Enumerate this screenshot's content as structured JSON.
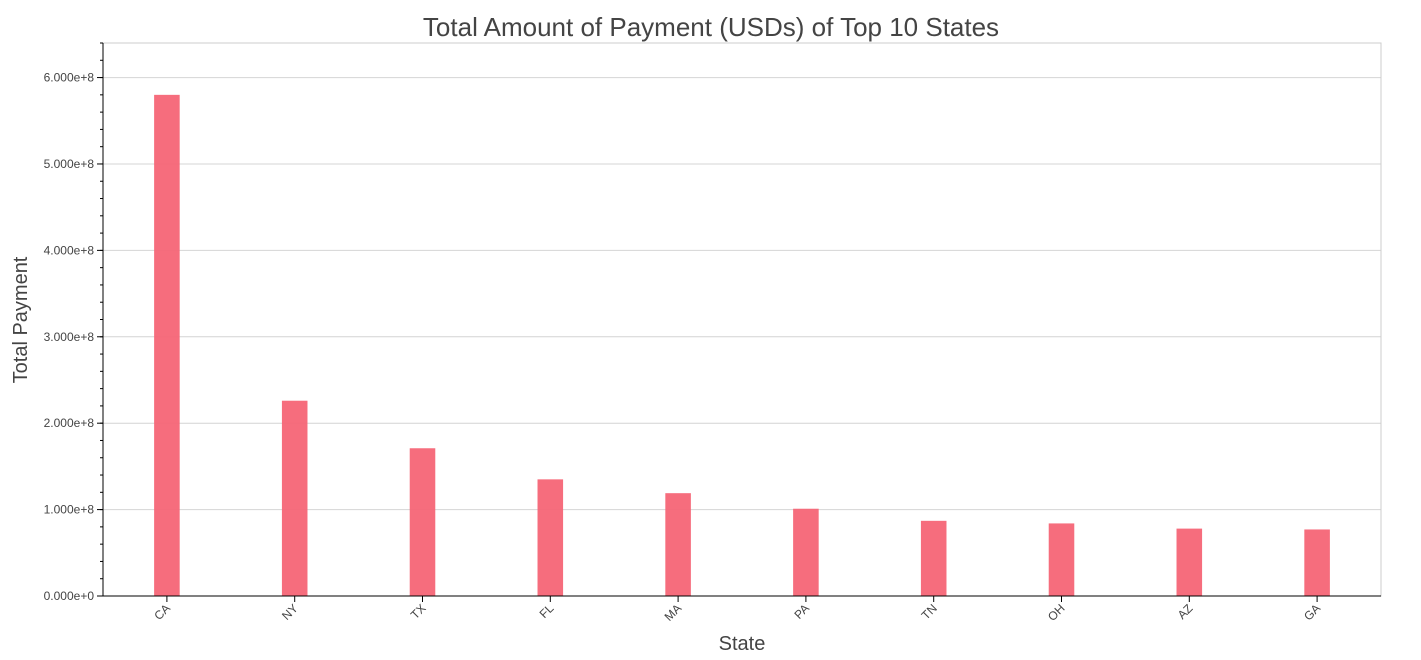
{
  "chart_data": {
    "type": "bar",
    "title": "Total Amount of Payment (USDs) of Top 10 States",
    "xlabel": "State",
    "ylabel": "Total Payment",
    "categories": [
      "CA",
      "NY",
      "TX",
      "FL",
      "MA",
      "PA",
      "TN",
      "OH",
      "AZ",
      "GA"
    ],
    "values": [
      580000000,
      226000000,
      171000000,
      135000000,
      119000000,
      101000000,
      87000000,
      84000000,
      78000000,
      77000000
    ],
    "ylim": [
      0,
      640000000
    ],
    "yticks": [
      0,
      100000000,
      200000000,
      300000000,
      400000000,
      500000000,
      600000000
    ],
    "ytick_labels": [
      "0.000e+0",
      "1.000e+8",
      "2.000e+8",
      "3.000e+8",
      "4.000e+8",
      "5.000e+8",
      "6.000e+8"
    ],
    "grid": "horizontal",
    "bar_color": "#f56576"
  }
}
